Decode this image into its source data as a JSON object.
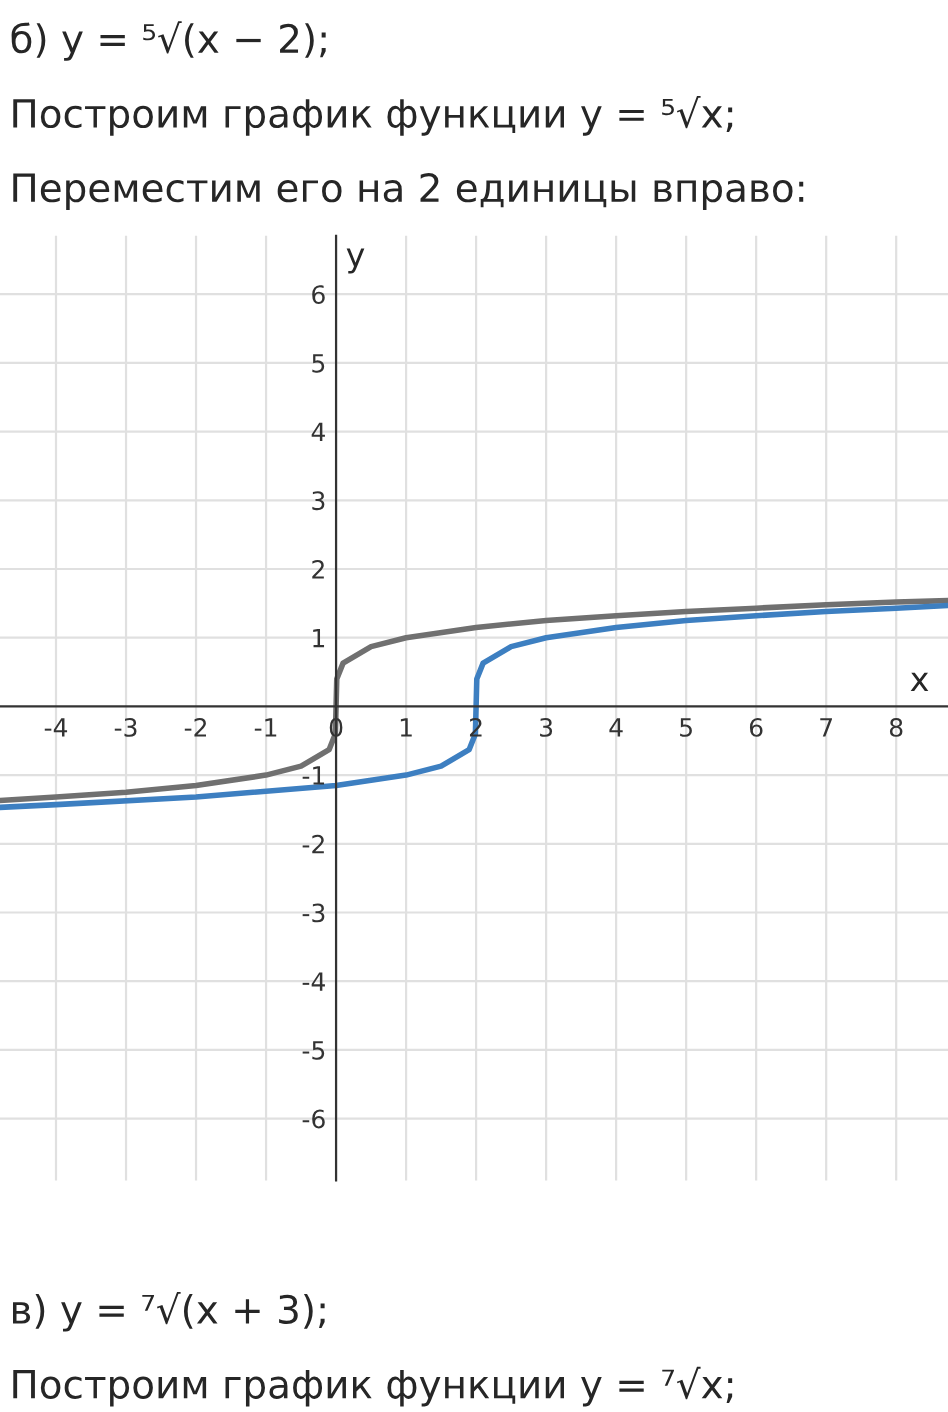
{
  "chart_data": {
    "type": "line",
    "xlabel": "x",
    "ylabel": "y",
    "annotations": [
      "б) y = ⁵√(x − 2);",
      "Построим график функции y = ⁵√x;",
      "Переместим его на 2 единицы вправо:",
      "в) y = ⁷√(x + 3);",
      "Построим график функции y = ⁷√x;"
    ],
    "xlim": [
      -4.8,
      8.74
    ],
    "ylim": [
      -6.9,
      6.85
    ],
    "xticks": [
      -4,
      -3,
      -2,
      -1,
      0,
      1,
      2,
      3,
      4,
      5,
      6,
      7,
      8
    ],
    "yticks": [
      -6,
      -5,
      -4,
      -3,
      -2,
      -1,
      1,
      2,
      3,
      4,
      5,
      6
    ],
    "grid": true,
    "marker": "none",
    "line_style": "solid",
    "series": [
      {
        "color": "#707070",
        "x": [
          -4.8,
          -4,
          -3,
          -2,
          -1,
          -0.5,
          -0.1,
          -0.01,
          0,
          0.01,
          0.1,
          0.5,
          1,
          2,
          3,
          4,
          5,
          6,
          7,
          8,
          8.74
        ],
        "values": [
          -1.37,
          -1.32,
          -1.25,
          -1.15,
          -1,
          -0.87,
          -0.63,
          -0.4,
          0,
          0.4,
          0.63,
          0.87,
          1,
          1.15,
          1.25,
          1.32,
          1.38,
          1.43,
          1.48,
          1.52,
          1.54
        ]
      },
      {
        "color": "#3d7fc1",
        "x": [
          -4.8,
          -4,
          -2,
          0,
          1,
          1.5,
          1.9,
          1.99,
          2,
          2.01,
          2.1,
          2.5,
          3,
          4,
          5,
          6,
          7,
          8,
          8.74
        ],
        "values": [
          -1.47,
          -1.43,
          -1.32,
          -1.15,
          -1,
          -0.87,
          -0.63,
          -0.4,
          0,
          0.4,
          0.63,
          0.87,
          1,
          1.15,
          1.25,
          1.32,
          1.38,
          1.43,
          1.47
        ]
      }
    ]
  }
}
